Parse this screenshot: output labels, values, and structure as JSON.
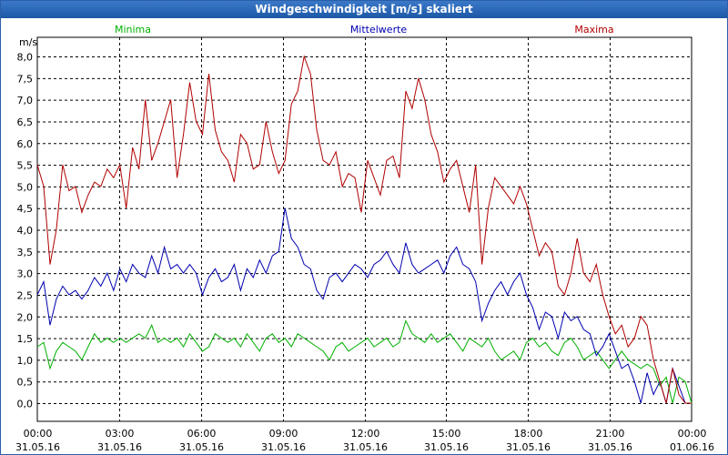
{
  "window": {
    "title": "Windgeschwindigkeit [m/s] skaliert"
  },
  "chart_data": {
    "type": "line",
    "title": "Windgeschwindigkeit [m/s] skaliert",
    "ylabel": "m/s",
    "ylim": [
      0,
      8
    ],
    "y_ticks": [
      0,
      0.5,
      1,
      1.5,
      2,
      2.5,
      3,
      3.5,
      4,
      4.5,
      5,
      5.5,
      6,
      6.5,
      7,
      7.5,
      8
    ],
    "y_tick_labels": [
      "0,0",
      "0,5",
      "1,0",
      "1,5",
      "2,0",
      "2,5",
      "3,0",
      "3,5",
      "4,0",
      "4,5",
      "5,0",
      "5,5",
      "6,0",
      "6,5",
      "7,0",
      "7,5",
      "8,0"
    ],
    "x_range_hours": [
      0,
      24
    ],
    "x_ticks": [
      {
        "hour": 0,
        "time": "00:00",
        "date": "31.05.16"
      },
      {
        "hour": 3,
        "time": "03:00",
        "date": "31.05.16"
      },
      {
        "hour": 6,
        "time": "06:00",
        "date": "31.05.16"
      },
      {
        "hour": 9,
        "time": "09:00",
        "date": "31.05.16"
      },
      {
        "hour": 12,
        "time": "12:00",
        "date": "31.05.16"
      },
      {
        "hour": 15,
        "time": "15:00",
        "date": "31.05.16"
      },
      {
        "hour": 18,
        "time": "18:00",
        "date": "31.05.16"
      },
      {
        "hour": 21,
        "time": "21:00",
        "date": "31.05.16"
      },
      {
        "hour": 24,
        "time": "00:00",
        "date": "01.06.16"
      }
    ],
    "grid": true,
    "series": [
      {
        "name": "Minima",
        "color": "#00b000",
        "legend_position": "left",
        "values": [
          1.3,
          1.4,
          0.8,
          1.2,
          1.4,
          1.3,
          1.2,
          1.0,
          1.3,
          1.6,
          1.4,
          1.5,
          1.4,
          1.5,
          1.4,
          1.5,
          1.6,
          1.5,
          1.8,
          1.4,
          1.5,
          1.4,
          1.5,
          1.3,
          1.6,
          1.4,
          1.2,
          1.3,
          1.6,
          1.5,
          1.4,
          1.5,
          1.3,
          1.6,
          1.4,
          1.2,
          1.5,
          1.6,
          1.4,
          1.5,
          1.3,
          1.6,
          1.5,
          1.4,
          1.3,
          1.2,
          1.0,
          1.3,
          1.4,
          1.2,
          1.3,
          1.4,
          1.5,
          1.3,
          1.4,
          1.5,
          1.3,
          1.4,
          1.9,
          1.6,
          1.5,
          1.4,
          1.6,
          1.4,
          1.5,
          1.6,
          1.4,
          1.2,
          1.5,
          1.4,
          1.3,
          1.5,
          1.2,
          1.0,
          1.1,
          1.2,
          1.0,
          1.4,
          1.5,
          1.3,
          1.4,
          1.2,
          1.1,
          1.4,
          1.5,
          1.3,
          1.0,
          1.1,
          1.2,
          1.0,
          0.8,
          1.0,
          1.2,
          1.0,
          0.9,
          0.8,
          0.9,
          0.8,
          0.4,
          0.6,
          0.0,
          0.6,
          0.5,
          0.0
        ]
      },
      {
        "name": "Mittelwerte",
        "color": "#0000b0",
        "legend_position": "center",
        "values": [
          2.5,
          2.8,
          1.8,
          2.4,
          2.7,
          2.5,
          2.6,
          2.4,
          2.6,
          2.9,
          2.7,
          3.0,
          2.6,
          3.1,
          2.8,
          3.2,
          3.0,
          2.9,
          3.4,
          3.0,
          3.6,
          3.1,
          3.2,
          3.0,
          3.2,
          3.0,
          2.5,
          2.9,
          3.1,
          2.8,
          2.9,
          3.2,
          2.6,
          3.1,
          2.9,
          3.3,
          3.0,
          3.4,
          3.5,
          4.5,
          3.8,
          3.6,
          3.2,
          3.1,
          2.6,
          2.4,
          2.9,
          3.0,
          2.8,
          3.0,
          3.2,
          3.1,
          2.9,
          3.2,
          3.3,
          3.5,
          3.2,
          3.0,
          3.7,
          3.2,
          3.0,
          3.1,
          3.2,
          3.3,
          3.0,
          3.4,
          3.6,
          3.2,
          3.1,
          2.8,
          1.9,
          2.3,
          2.6,
          2.8,
          2.5,
          2.8,
          3.0,
          2.5,
          2.2,
          1.7,
          2.1,
          2.0,
          1.5,
          2.1,
          1.9,
          2.0,
          1.7,
          1.6,
          1.1,
          1.3,
          1.6,
          1.2,
          0.8,
          0.9,
          0.5,
          0.0,
          0.7,
          0.2,
          0.5,
          0.0,
          0.8,
          0.4,
          0.0,
          0.0
        ]
      },
      {
        "name": "Maxima",
        "color": "#b00000",
        "legend_position": "right",
        "values": [
          5.5,
          5.0,
          3.2,
          4.0,
          5.5,
          4.9,
          5.0,
          4.4,
          4.8,
          5.1,
          5.0,
          5.4,
          5.2,
          5.5,
          4.5,
          5.9,
          5.4,
          7.0,
          5.6,
          6.0,
          6.5,
          7.0,
          5.2,
          6.2,
          7.4,
          6.5,
          6.2,
          7.6,
          6.3,
          5.8,
          5.6,
          5.1,
          6.2,
          6.0,
          5.4,
          5.5,
          6.5,
          5.8,
          5.3,
          5.6,
          6.9,
          7.2,
          8.0,
          7.6,
          6.3,
          5.6,
          5.5,
          5.8,
          5.0,
          5.3,
          5.2,
          4.4,
          5.6,
          5.2,
          4.8,
          5.6,
          5.7,
          5.2,
          7.2,
          6.8,
          7.5,
          7.0,
          6.2,
          5.8,
          5.1,
          5.4,
          5.6,
          5.0,
          4.4,
          5.5,
          3.2,
          4.5,
          5.2,
          5.0,
          4.8,
          4.6,
          5.0,
          4.6,
          4.0,
          3.4,
          3.7,
          3.5,
          2.7,
          2.5,
          3.0,
          3.8,
          3.0,
          2.8,
          3.2,
          2.5,
          2.0,
          1.6,
          1.8,
          1.3,
          1.5,
          2.0,
          1.8,
          1.0,
          0.5,
          0.0,
          0.8,
          0.2,
          0.0,
          0.0
        ]
      }
    ]
  }
}
